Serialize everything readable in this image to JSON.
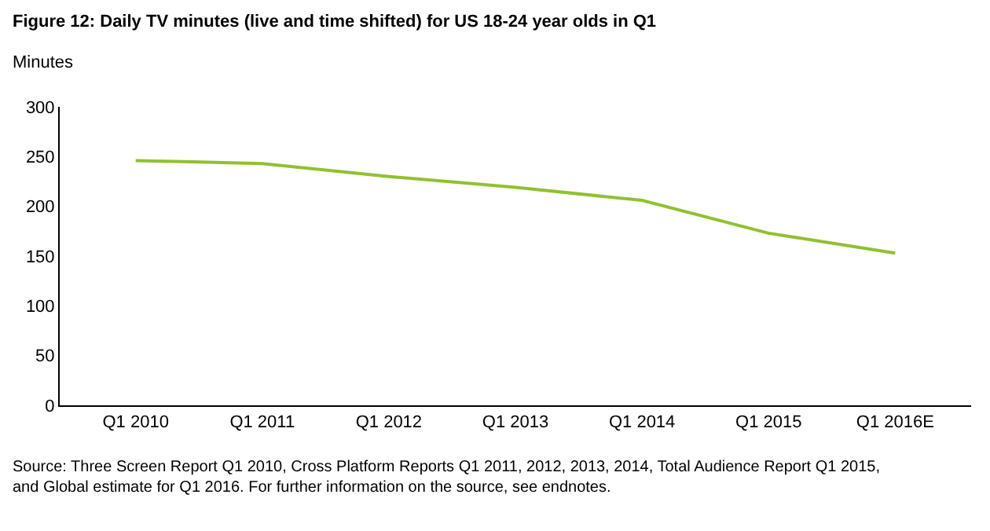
{
  "chart_data": {
    "type": "line",
    "title": "Figure 12: Daily TV minutes (live and time shifted) for US 18-24 year olds in Q1",
    "ylabel": "Minutes",
    "categories": [
      "Q1 2010",
      "Q1 2011",
      "Q1 2012",
      "Q1 2013",
      "Q1 2014",
      "Q1 2015",
      "Q1 2016E"
    ],
    "series": [
      {
        "color": "#92c02f",
        "values": [
          246,
          243,
          230,
          219,
          206,
          173,
          153
        ]
      }
    ],
    "ylim": [
      0,
      300
    ],
    "yticks": [
      0,
      50,
      100,
      150,
      200,
      250,
      300
    ],
    "legend": false,
    "marker": "none",
    "line_style": "solid",
    "annotations": [
      "Source: Three Screen Report Q1 2010, Cross Platform Reports Q1 2011, 2012, 2013, 2014, Total Audience Report Q1 2015, and Global estimate for Q1 2016. For further information on the source, see endnotes."
    ]
  }
}
